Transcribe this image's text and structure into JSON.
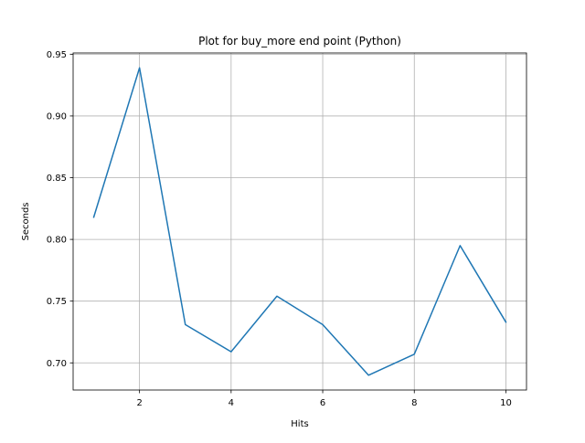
{
  "chart_data": {
    "type": "line",
    "title": "Plot for buy_more end point (Python)",
    "xlabel": "Hits",
    "ylabel": "Seconds",
    "x": [
      1,
      2,
      3,
      4,
      5,
      6,
      7,
      8,
      9,
      10
    ],
    "series": [
      {
        "values": [
          0.818,
          0.939,
          0.731,
          0.709,
          0.754,
          0.731,
          0.69,
          0.707,
          0.795,
          0.733
        ],
        "color": "#1f77b4"
      }
    ],
    "xlim": [
      0.55,
      10.45
    ],
    "ylim": [
      0.678,
      0.951
    ],
    "xticks": [
      2,
      4,
      6,
      8,
      10
    ],
    "xtick_labels": [
      "2",
      "4",
      "6",
      "8",
      "10"
    ],
    "yticks": [
      0.7,
      0.75,
      0.8,
      0.85,
      0.9,
      0.95
    ],
    "ytick_labels": [
      "0.70",
      "0.75",
      "0.80",
      "0.85",
      "0.90",
      "0.95"
    ],
    "grid": true,
    "legend": "none"
  }
}
